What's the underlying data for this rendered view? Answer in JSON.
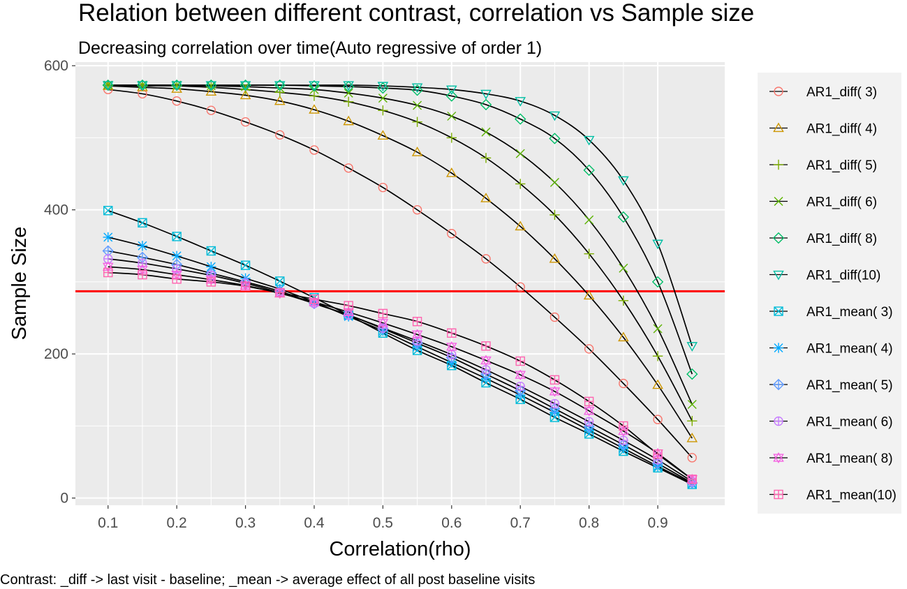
{
  "chart_data": {
    "type": "line",
    "title": "Relation between different contrast, correlation vs Sample size",
    "subtitle": "Decreasing correlation over time(Auto regressive of order 1)",
    "xlabel": "Correlation(rho)",
    "ylabel": "Sample Size",
    "caption": "Contrast: _diff -> last visit - baseline; _mean -> average effect of all post baseline visits",
    "x": [
      0.1,
      0.15,
      0.2,
      0.25,
      0.3,
      0.35,
      0.4,
      0.45,
      0.5,
      0.55,
      0.6,
      0.65,
      0.7,
      0.75,
      0.8,
      0.85,
      0.9,
      0.95
    ],
    "xlim": [
      0.0525,
      0.9975
    ],
    "ylim": [
      -10,
      605
    ],
    "x_ticks": [
      "0.1",
      "0.2",
      "0.3",
      "0.4",
      "0.5",
      "0.6",
      "0.7",
      "0.8",
      "0.9"
    ],
    "y_ticks": [
      "0",
      "200",
      "400",
      "600"
    ],
    "reference_line": {
      "y": 287,
      "color": "#ff0000"
    },
    "grid": true,
    "legend_position": "right",
    "series": [
      {
        "name": "AR1_diff( 3)",
        "shape": "circle",
        "color": "#f8766d",
        "values": [
          567,
          561,
          551,
          538,
          522,
          504,
          483,
          458,
          431,
          400,
          367,
          332,
          293,
          251,
          207,
          159,
          109,
          56
        ]
      },
      {
        "name": "AR1_diff( 4)",
        "shape": "triangle",
        "color": "#cd9600",
        "values": [
          572,
          570,
          568,
          564,
          559,
          551,
          539,
          523,
          503,
          480,
          451,
          416,
          377,
          332,
          281,
          223,
          157,
          83
        ]
      },
      {
        "name": "AR1_diff( 5)",
        "shape": "plus",
        "color": "#7cae00",
        "values": [
          573,
          572,
          572,
          570,
          567,
          563,
          558,
          550,
          538,
          522,
          500,
          472,
          436,
          393,
          339,
          274,
          197,
          107
        ]
      },
      {
        "name": "AR1_diff( 6)",
        "shape": "cross",
        "color": "#5bb300",
        "values": [
          573,
          573,
          573,
          572,
          571,
          569,
          567,
          562,
          555,
          545,
          530,
          508,
          478,
          438,
          386,
          319,
          235,
          130
        ]
      },
      {
        "name": "AR1_diff( 8)",
        "shape": "diamond",
        "color": "#00be67",
        "values": [
          573,
          573,
          573,
          573,
          573,
          573,
          572,
          571,
          569,
          566,
          558,
          546,
          526,
          499,
          455,
          390,
          300,
          172
        ]
      },
      {
        "name": "AR1_diff(10)",
        "shape": "triangle-down",
        "color": "#00bfa4",
        "values": [
          573,
          573,
          573,
          573,
          573,
          573,
          573,
          573,
          572,
          570,
          567,
          561,
          551,
          531,
          497,
          441,
          353,
          211
        ]
      },
      {
        "name": "AR1_mean( 3)",
        "shape": "square-cross",
        "color": "#00bcd8",
        "values": [
          399,
          382,
          363,
          343,
          323,
          301,
          278,
          254,
          229,
          205,
          184,
          160,
          137,
          112,
          89,
          65,
          42,
          19
        ]
      },
      {
        "name": "AR1_mean( 4)",
        "shape": "asterisk",
        "color": "#00a9ff",
        "values": [
          362,
          350,
          336,
          321,
          305,
          290,
          272,
          252,
          232,
          210,
          188,
          166,
          143,
          119,
          94,
          69,
          44,
          20
        ]
      },
      {
        "name": "AR1_mean( 5)",
        "shape": "diamond-plus",
        "color": "#619cff",
        "values": [
          343,
          334,
          324,
          312,
          300,
          287,
          270,
          254,
          235,
          215,
          195,
          172,
          149,
          124,
          99,
          74,
          48,
          21
        ]
      },
      {
        "name": "AR1_mean( 6)",
        "shape": "circle-plus",
        "color": "#c77cff",
        "values": [
          332,
          326,
          318,
          309,
          298,
          285,
          270,
          254,
          236,
          218,
          199,
          178,
          155,
          131,
          106,
          80,
          53,
          23
        ]
      },
      {
        "name": "AR1_mean( 8)",
        "shape": "star-of-david",
        "color": "#f564e3",
        "values": [
          321,
          317,
          310,
          303,
          295,
          284,
          272,
          258,
          243,
          227,
          210,
          191,
          171,
          148,
          121,
          93,
          62,
          26
        ]
      },
      {
        "name": "AR1_mean(10)",
        "shape": "square-plus",
        "color": "#ff64b0",
        "values": [
          313,
          310,
          304,
          300,
          294,
          285,
          276,
          267,
          256,
          245,
          229,
          211,
          190,
          164,
          134,
          100,
          61,
          26
        ]
      }
    ]
  }
}
